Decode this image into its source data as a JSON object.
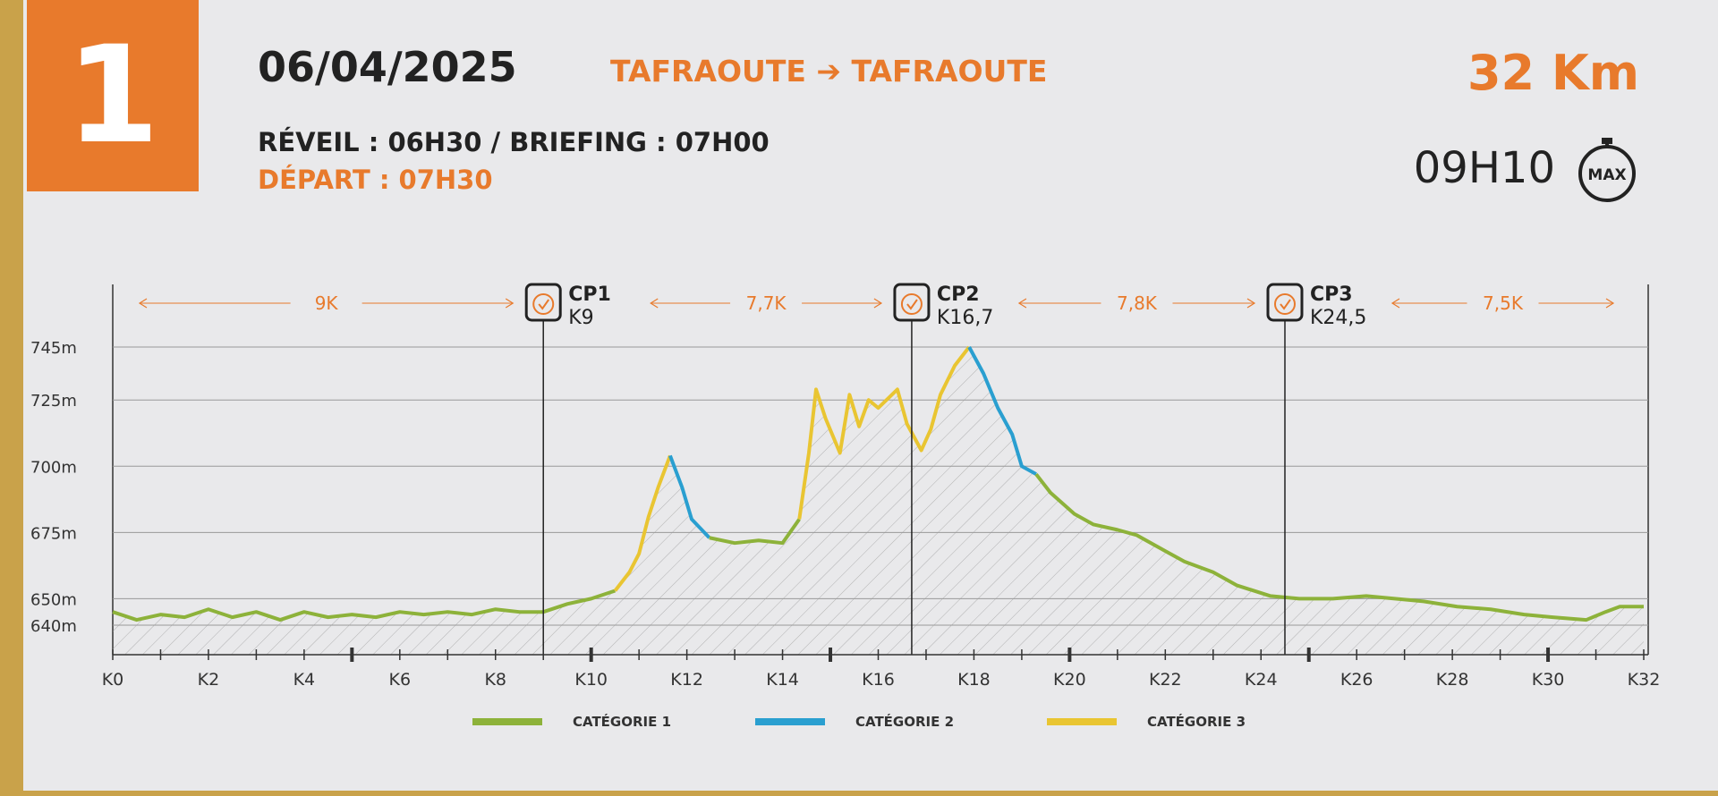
{
  "header": {
    "stage_number": "1",
    "date": "06/04/2025",
    "route": "TAFRAOUTE ➔ TAFRAOUTE",
    "distance": "32 Km",
    "schedule": "RÉVEIL : 06H30 / BRIEFING : 07H00",
    "departure": "DÉPART : 07H30",
    "max_time": "09H10",
    "max_icon_label": "MAX",
    "max_icon": "stopwatch-icon",
    "accent_color": "#e87a2c"
  },
  "chart_data": {
    "type": "line",
    "title": "",
    "xlabel": "",
    "ylabel": "",
    "xlim": [
      0,
      32
    ],
    "y_ticks": [
      "640m",
      "650m",
      "675m",
      "700m",
      "725m",
      "745m"
    ],
    "y_tick_values": [
      640,
      650,
      675,
      700,
      725,
      745
    ],
    "x_ticks": [
      "K0",
      "K2",
      "K4",
      "K6",
      "K8",
      "K10",
      "K12",
      "K14",
      "K16",
      "K18",
      "K20",
      "K22",
      "K24",
      "K26",
      "K28",
      "K30",
      "K32"
    ],
    "grid": true,
    "checkpoints": [
      {
        "name": "CP1",
        "km_label": "K9",
        "km": 9
      },
      {
        "name": "CP2",
        "km_label": "K16,7",
        "km": 16.7
      },
      {
        "name": "CP3",
        "km_label": "K24,5",
        "km": 24.5
      }
    ],
    "section_distances": [
      "9K",
      "7,7K",
      "7,8K",
      "7,5K"
    ],
    "legend": [
      {
        "label": "CATÉGORIE 1",
        "color": "#8db23a"
      },
      {
        "label": "CATÉGORIE 2",
        "color": "#2a9fd0"
      },
      {
        "label": "CATÉGORIE 3",
        "color": "#e9c532"
      }
    ],
    "series": [
      {
        "category": 1,
        "points": [
          [
            0,
            645
          ],
          [
            0.5,
            642
          ],
          [
            1,
            644
          ],
          [
            1.5,
            643
          ],
          [
            2,
            646
          ],
          [
            2.5,
            643
          ],
          [
            3,
            645
          ],
          [
            3.5,
            642
          ],
          [
            4,
            645
          ],
          [
            4.5,
            643
          ],
          [
            5,
            644
          ],
          [
            5.5,
            643
          ],
          [
            6,
            645
          ],
          [
            6.5,
            644
          ],
          [
            7,
            645
          ],
          [
            7.5,
            644
          ],
          [
            8,
            646
          ],
          [
            8.5,
            645
          ],
          [
            9,
            645
          ],
          [
            9.5,
            648
          ],
          [
            10,
            650
          ],
          [
            10.5,
            653
          ]
        ]
      },
      {
        "category": 3,
        "points": [
          [
            10.5,
            653
          ],
          [
            10.8,
            660
          ],
          [
            11,
            667
          ],
          [
            11.2,
            681
          ],
          [
            11.4,
            692
          ],
          [
            11.65,
            704
          ]
        ]
      },
      {
        "category": 2,
        "points": [
          [
            11.65,
            704
          ],
          [
            11.9,
            692
          ],
          [
            12.1,
            680
          ],
          [
            12.47,
            673
          ]
        ]
      },
      {
        "category": 1,
        "points": [
          [
            12.47,
            673
          ],
          [
            13,
            671
          ],
          [
            13.5,
            672
          ],
          [
            14,
            671
          ],
          [
            14.35,
            680
          ]
        ]
      },
      {
        "category": 3,
        "points": [
          [
            14.35,
            680
          ],
          [
            14.55,
            705
          ],
          [
            14.7,
            729
          ],
          [
            14.9,
            718
          ],
          [
            15.2,
            705
          ],
          [
            15.4,
            727
          ],
          [
            15.6,
            715
          ],
          [
            15.8,
            725
          ],
          [
            16,
            722
          ],
          [
            16.4,
            729
          ],
          [
            16.6,
            716
          ],
          [
            16.9,
            706
          ],
          [
            17.1,
            714
          ],
          [
            17.3,
            727
          ],
          [
            17.6,
            738
          ],
          [
            17.9,
            745
          ]
        ]
      },
      {
        "category": 2,
        "points": [
          [
            17.9,
            745
          ],
          [
            18.2,
            735
          ],
          [
            18.5,
            722
          ],
          [
            18.8,
            712
          ],
          [
            19.0,
            700
          ],
          [
            19.3,
            697
          ]
        ]
      },
      {
        "category": 1,
        "points": [
          [
            19.3,
            697
          ],
          [
            19.6,
            690
          ],
          [
            20.1,
            682
          ],
          [
            20.5,
            678
          ],
          [
            21,
            676
          ],
          [
            21.4,
            674
          ],
          [
            22,
            668
          ],
          [
            22.4,
            664
          ],
          [
            23,
            660
          ],
          [
            23.5,
            655
          ],
          [
            24.2,
            651
          ],
          [
            24.8,
            650
          ],
          [
            25.5,
            650
          ],
          [
            26.2,
            651
          ],
          [
            26.8,
            650
          ],
          [
            27.4,
            649
          ],
          [
            28.1,
            647
          ],
          [
            28.8,
            646
          ],
          [
            29.5,
            644
          ],
          [
            30.1,
            643
          ],
          [
            30.8,
            642
          ],
          [
            31.2,
            645
          ],
          [
            31.5,
            647
          ],
          [
            32,
            647
          ]
        ]
      }
    ]
  }
}
